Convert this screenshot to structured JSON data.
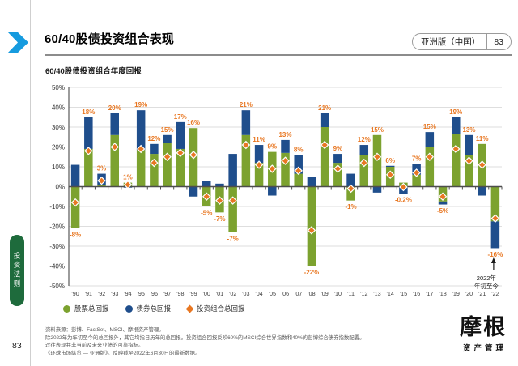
{
  "page": {
    "title": "60/40股债投资组合表现",
    "badge": {
      "region": "亚洲版（中国）",
      "page": "83"
    },
    "page_number": "83",
    "sidebar_tab": "投资法则",
    "logo": {
      "name": "摩根",
      "subtitle": "资产管理"
    }
  },
  "chart": {
    "subtitle": "60/40股债投资组合年度回报"
  },
  "colors": {
    "stock_green": "#7ca22f",
    "bond_blue": "#1f4e8c",
    "portfolio_orange": "#e87722",
    "chevron_blue": "#169bdf",
    "sidebar_green": "#1e6b3c",
    "gridline": "#dedede",
    "zero_axis": "#4d4d4d"
  },
  "legend": [
    {
      "label": "股票总回报",
      "color": "#7ca22f",
      "marker": "circle"
    },
    {
      "label": "债券总回报",
      "color": "#1f4e8c",
      "marker": "circle"
    },
    {
      "label": "投资组合总回报",
      "color": "#e87722",
      "marker": "diamond"
    }
  ],
  "footnotes": [
    "资料来源：彭博、FactSet、MSCI、摩根资产管理。",
    "除2022年为年初至今的总回报外，其它均指日历年的总回报。投资组合回报反映60%的MSCI综合世界指数和40%的彭博综合债券指数配置。",
    "过往表现并非当前及未来业绩的可靠指标。",
    "《环球市场纵览 — 亚洲版》。反映截至2022年6月30日的最新数据。"
  ],
  "chart_data": {
    "type": "bar",
    "stacked": true,
    "title": "60/40股债投资组合年度回报",
    "ylim": [
      -50,
      50
    ],
    "ytick_step": 10,
    "yticks": [
      "50%",
      "40%",
      "30%",
      "20%",
      "10%",
      "0%",
      "-10%",
      "-20%",
      "-30%",
      "-40%",
      "-50%"
    ],
    "categories": [
      "'90",
      "'91",
      "'92",
      "'93",
      "'94",
      "'95",
      "'96",
      "'97",
      "'98",
      "'99",
      "'00",
      "'01",
      "'02",
      "'03",
      "'04",
      "'05",
      "'06",
      "'07",
      "'08",
      "'09",
      "'10",
      "'11",
      "'12",
      "'13",
      "'14",
      "'15",
      "'16",
      "'17",
      "'18",
      "'19",
      "'20",
      "'21",
      "'22"
    ],
    "series": [
      {
        "name": "股票总回报",
        "type": "bar",
        "color": "#7ca22f",
        "values": [
          -21,
          19,
          1,
          26,
          2,
          18.5,
          16.5,
          22,
          19,
          29.5,
          -10,
          -13,
          -23,
          26,
          12,
          17.5,
          17,
          6.5,
          -40,
          30,
          12,
          -7,
          16,
          26,
          10,
          2,
          6,
          20,
          -7.5,
          26.5,
          16,
          21.5,
          -17.5
        ]
      },
      {
        "name": "债券总回报",
        "type": "bar",
        "color": "#1f4e8c",
        "values": [
          11,
          16,
          5.5,
          11,
          -0.5,
          20,
          5,
          4,
          13.5,
          -5,
          3,
          1.5,
          16.5,
          12.5,
          9,
          -4.5,
          6.5,
          9.5,
          5,
          7,
          4.5,
          6.5,
          5,
          -3,
          0.5,
          -3.5,
          5.5,
          7.5,
          -1.5,
          8.5,
          10,
          -4.5,
          -13.5
        ]
      },
      {
        "name": "投资组合总回报",
        "type": "scatter-diamond",
        "color": "#e87722",
        "values": [
          -8,
          18,
          3,
          20,
          1,
          19,
          12,
          15,
          17,
          16,
          -5,
          -7,
          -7,
          21,
          11,
          9,
          13,
          8,
          -22,
          21,
          9,
          -1,
          12,
          15,
          6,
          -0.2,
          7,
          15,
          -5,
          19,
          13,
          11,
          -16
        ]
      }
    ],
    "point_labels": [
      "-8%",
      "18%",
      "3%",
      "20%",
      "1%",
      "19%",
      "12%",
      "15%",
      "17%",
      "16%",
      "-5%",
      "-7%",
      "-7%",
      "21%",
      "11%",
      "9%",
      "13%",
      "8%",
      "-22%",
      "21%",
      "9%",
      "-1%",
      "12%",
      "15%",
      "6%",
      "-0.2%",
      "7%",
      "15%",
      "-5%",
      "19%",
      "13%",
      "11%",
      "-16%"
    ],
    "annotation": {
      "target_category": "'22",
      "lines": [
        "2022年",
        "年初至今"
      ]
    },
    "legend_position": "bottom",
    "grid": true
  }
}
